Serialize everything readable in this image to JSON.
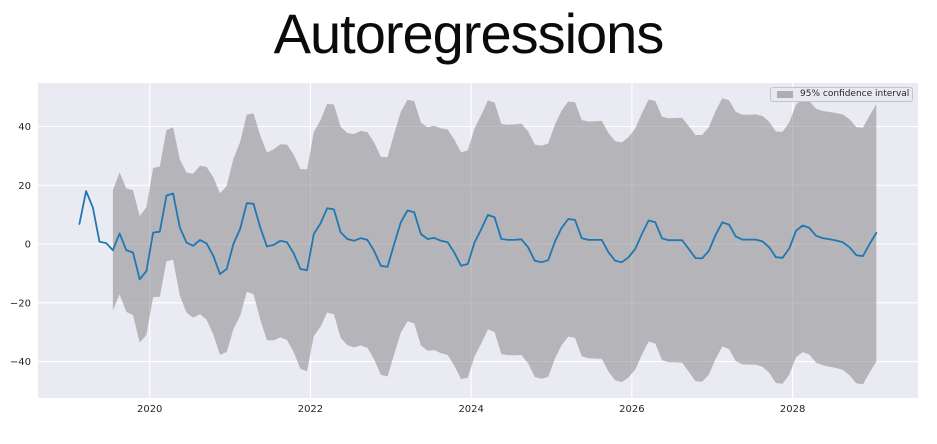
{
  "chart_data": {
    "type": "line",
    "title": "Autoregressions",
    "legend": {
      "label": "95% confidence interval",
      "position": "upper right",
      "swatch_color": "#adadb3"
    },
    "plot_style": "seaborn-darkgrid",
    "background_color": "#eaeaf2",
    "grid_color": "#ffffff",
    "grid": true,
    "x_range": [
      2018.61,
      2029.56
    ],
    "y_range": [
      -52.4,
      54.8
    ],
    "x_ticks": [
      {
        "v": 2020,
        "label": "2020"
      },
      {
        "v": 2022,
        "label": "2022"
      },
      {
        "v": 2024,
        "label": "2024"
      },
      {
        "v": 2026,
        "label": "2026"
      },
      {
        "v": 2028,
        "label": "2028"
      }
    ],
    "y_ticks": [
      {
        "v": -40,
        "label": "−40"
      },
      {
        "v": -20,
        "label": "−20"
      },
      {
        "v": 0,
        "label": "0"
      },
      {
        "v": 20,
        "label": "20"
      },
      {
        "v": 40,
        "label": "40"
      }
    ],
    "series": [
      {
        "name": "prediction",
        "color": "#1f77b4",
        "start": "2019-02",
        "freq": "monthly",
        "values": [
          6.8,
          18.0,
          12.5,
          0.8,
          0.3,
          -2.1,
          3.6,
          -2.1,
          -2.9,
          -12.0,
          -9.2,
          3.9,
          4.2,
          16.5,
          17.2,
          5.7,
          0.5,
          -0.6,
          1.4,
          0.2,
          -4.0,
          -10.2,
          -8.5,
          0.0,
          5.1,
          13.9,
          13.7,
          5.7,
          -0.8,
          -0.3,
          1.1,
          0.6,
          -3.2,
          -8.5,
          -8.9,
          3.4,
          7.0,
          12.2,
          11.8,
          4.0,
          1.7,
          1.1,
          2.0,
          1.4,
          -2.3,
          -7.4,
          -7.8,
          0.0,
          7.4,
          11.4,
          10.8,
          3.4,
          1.7,
          2.1,
          1.1,
          0.6,
          -3.0,
          -7.4,
          -6.8,
          0.5,
          5.0,
          9.9,
          9.1,
          1.7,
          1.4,
          1.4,
          1.6,
          -1.1,
          -5.7,
          -6.2,
          -5.5,
          0.8,
          5.5,
          8.5,
          8.2,
          2.0,
          1.4,
          1.4,
          1.4,
          -2.8,
          -5.7,
          -6.2,
          -4.5,
          -1.7,
          3.4,
          8.0,
          7.4,
          1.9,
          1.3,
          1.3,
          1.3,
          -1.7,
          -4.8,
          -4.9,
          -2.3,
          3.1,
          7.4,
          6.6,
          2.6,
          1.5,
          1.5,
          1.5,
          0.9,
          -1.1,
          -4.5,
          -4.7,
          -1.5,
          4.5,
          6.3,
          5.5,
          2.8,
          2.0,
          1.6,
          1.2,
          0.6,
          -1.1,
          -3.8,
          -4.1,
          0.0,
          3.8
        ]
      }
    ],
    "confidence_band": {
      "label": "95% confidence interval",
      "color": "#808080",
      "opacity": 0.5,
      "start_index": 5,
      "start": "2019-07",
      "half_width_anchors": [
        [
          0,
          20.5
        ],
        [
          6,
          22.0
        ],
        [
          9,
          22.5
        ],
        [
          12,
          24.5
        ],
        [
          18,
          29.0
        ],
        [
          24,
          32.5
        ],
        [
          32,
          35.5
        ],
        [
          42,
          37.5
        ],
        [
          54,
          38.8
        ],
        [
          66,
          39.8
        ],
        [
          78,
          41.0
        ],
        [
          90,
          42.2
        ],
        [
          102,
          43.0
        ],
        [
          114,
          43.8
        ]
      ]
    }
  }
}
